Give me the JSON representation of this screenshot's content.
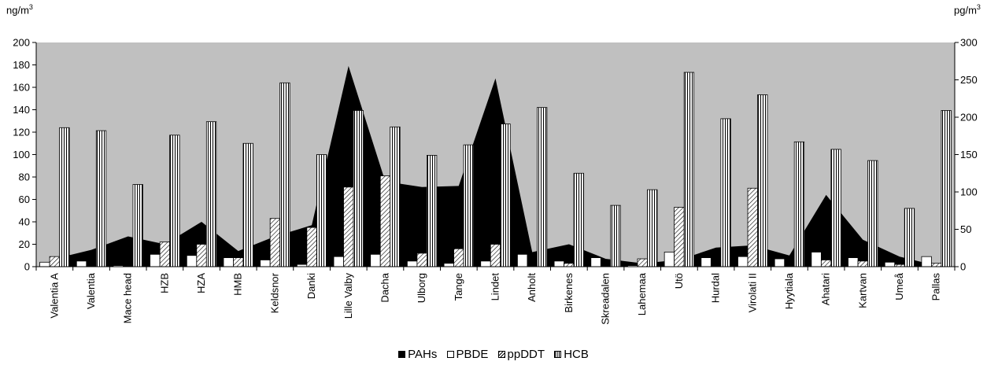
{
  "chart_data": {
    "type": "bar",
    "units": {
      "left_prefix": "ng/m",
      "left_sup": "3",
      "right_prefix": "pg/m",
      "right_sup": "3"
    },
    "categories": [
      "Valentia A",
      "Valentia",
      "Mace head",
      "HZB",
      "HZA",
      "HMB",
      "Keldsnor",
      "Danki",
      "Lille Valby",
      "Dacha",
      "Ulborg",
      "Tange",
      "Lindet",
      "Anholt",
      "Birkenes",
      "Skreadalen",
      "Lahemaa",
      "Utö",
      "Hurdal",
      "Virolati II",
      "Hyytiala",
      "Ahatari",
      "Kartvan",
      "Umeå",
      "Pallas"
    ],
    "y_left": {
      "ticks": [
        "0",
        "20",
        "40",
        "60",
        "80",
        "100",
        "120",
        "140",
        "160",
        "180",
        "200"
      ],
      "ylim": [
        0,
        200
      ]
    },
    "y_right": {
      "ticks": [
        "0",
        "50",
        "100",
        "150",
        "200",
        "250",
        "300"
      ],
      "ylim": [
        0,
        300
      ]
    },
    "series": [
      {
        "name": "PAHs",
        "type": "area",
        "axis": "left",
        "values": [
          7,
          15,
          27,
          20,
          40,
          14,
          27,
          37,
          179,
          76,
          71,
          72,
          168,
          13,
          20,
          7,
          3,
          6,
          17,
          19,
          10,
          64,
          24,
          9,
          1
        ]
      },
      {
        "name": "PBDE",
        "type": "bar",
        "axis": "left",
        "values": [
          4,
          5,
          1,
          11,
          10,
          8,
          6,
          2,
          9,
          11,
          5,
          3,
          5,
          11,
          5,
          8,
          1,
          13,
          8,
          9,
          7,
          13,
          8,
          4,
          9
        ]
      },
      {
        "name": "ppDDT",
        "type": "bar",
        "axis": "left",
        "values": [
          9,
          0,
          0,
          22,
          20,
          8,
          43,
          35,
          71,
          81,
          12,
          16,
          20,
          0,
          3,
          0,
          7,
          53,
          0,
          70,
          0,
          6,
          5,
          2,
          3
        ]
      },
      {
        "name": "HCB",
        "type": "bar",
        "axis": "right",
        "values": [
          186,
          182,
          110,
          176,
          194,
          165,
          246,
          150,
          209,
          187,
          149,
          163,
          191,
          213,
          125,
          82,
          103,
          260,
          198,
          230,
          167,
          157,
          142,
          78,
          209
        ]
      }
    ],
    "legend": [
      "PAHs",
      "PBDE",
      "ppDDT",
      "HCB"
    ],
    "legend_position": "bottom",
    "plot_background": "#c0c0c0"
  }
}
